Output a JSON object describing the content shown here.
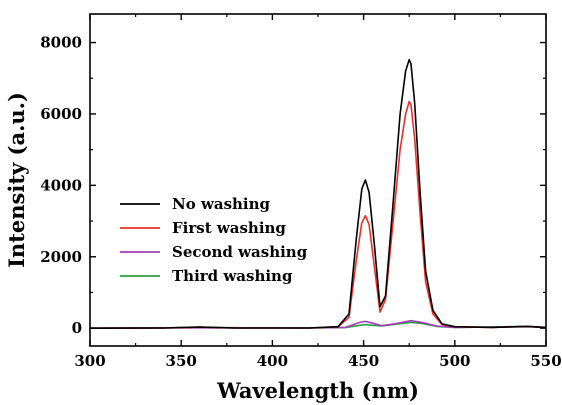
{
  "chart_data": {
    "type": "line",
    "title": "",
    "xlabel": "Wavelength (nm)",
    "ylabel": "Intensity (a.u.)",
    "xlim": [
      300,
      550
    ],
    "ylim": [
      -500,
      8800
    ],
    "x_ticks": [
      300,
      350,
      400,
      450,
      500,
      550
    ],
    "y_ticks": [
      0,
      2000,
      4000,
      6000,
      8000
    ],
    "grid": false,
    "legend_position": "center-left",
    "series": [
      {
        "name": "No  washing",
        "color": "#000000",
        "x": [
          300,
          340,
          360,
          380,
          420,
          436,
          442,
          446,
          449,
          451,
          453,
          456,
          459,
          462,
          466,
          470,
          473,
          475,
          476,
          478,
          481,
          484,
          488,
          493,
          500,
          520,
          540,
          550
        ],
        "y": [
          0,
          5,
          30,
          5,
          5,
          40,
          400,
          2500,
          3900,
          4150,
          3800,
          2300,
          600,
          900,
          3400,
          6000,
          7200,
          7520,
          7400,
          6300,
          3800,
          1600,
          500,
          120,
          40,
          20,
          50,
          20
        ]
      },
      {
        "name": "First washing",
        "color": "#e8302a",
        "x": [
          300,
          340,
          360,
          380,
          420,
          436,
          442,
          446,
          449,
          451,
          453,
          456,
          459,
          462,
          466,
          470,
          473,
          475,
          476,
          478,
          481,
          484,
          488,
          493,
          500,
          520,
          540,
          550
        ],
        "y": [
          0,
          5,
          30,
          5,
          5,
          40,
          300,
          1900,
          2950,
          3150,
          2900,
          1700,
          450,
          800,
          2900,
          5000,
          6000,
          6350,
          6250,
          5300,
          3200,
          1300,
          400,
          100,
          40,
          20,
          50,
          20
        ]
      },
      {
        "name": "Second washing",
        "color": "#a23fb5",
        "x": [
          300,
          360,
          420,
          440,
          448,
          451,
          455,
          460,
          468,
          476,
          482,
          490,
          500,
          540,
          550
        ],
        "y": [
          0,
          10,
          5,
          20,
          160,
          190,
          140,
          70,
          130,
          210,
          160,
          60,
          20,
          40,
          15
        ]
      },
      {
        "name": "Third washing",
        "color": "#2f9e48",
        "x": [
          300,
          360,
          420,
          440,
          448,
          451,
          455,
          460,
          468,
          476,
          482,
          490,
          500,
          540,
          550
        ],
        "y": [
          0,
          15,
          5,
          15,
          80,
          100,
          80,
          60,
          110,
          160,
          130,
          50,
          20,
          50,
          15
        ]
      }
    ]
  }
}
